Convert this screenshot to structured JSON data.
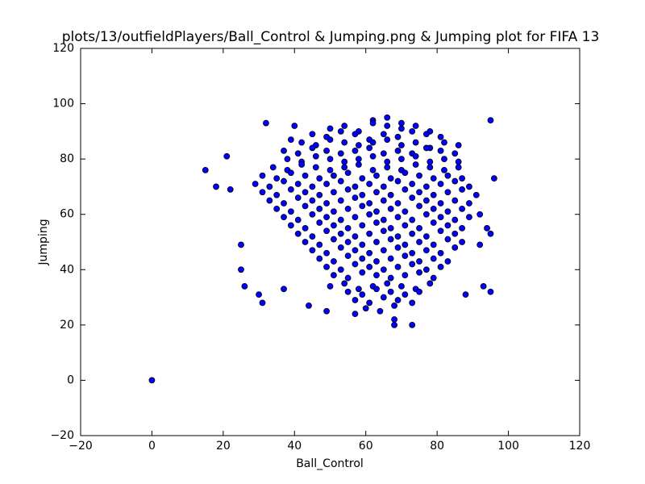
{
  "chart_data": {
    "type": "scatter",
    "title": "plots/13/outfieldPlayers/Ball_Control & Jumping.png & Jumping plot for FIFA 13",
    "xlabel": "Ball_Control",
    "ylabel": "Jumping",
    "color": "#0000ff",
    "xlim": [
      -20,
      120
    ],
    "ylim": [
      -20,
      120
    ],
    "xticks": [
      {
        "value": -20,
        "label": "−20"
      },
      0,
      20,
      40,
      60,
      80,
      100,
      120
    ],
    "yticks": [
      {
        "value": -20,
        "label": "−20"
      },
      0,
      20,
      40,
      60,
      80,
      100,
      120
    ],
    "x": [
      62,
      66,
      70,
      50,
      54,
      58,
      62,
      66,
      70,
      74,
      78,
      45,
      49,
      53,
      57,
      61,
      65,
      69,
      73,
      77,
      81,
      42,
      46,
      50,
      54,
      58,
      62,
      66,
      70,
      74,
      78,
      82,
      86,
      37,
      41,
      45,
      49,
      53,
      57,
      61,
      65,
      69,
      73,
      77,
      81,
      85,
      38,
      42,
      46,
      50,
      54,
      58,
      62,
      66,
      70,
      74,
      78,
      82,
      86,
      34,
      38,
      42,
      46,
      50,
      54,
      58,
      62,
      66,
      70,
      74,
      78,
      82,
      86,
      31,
      35,
      39,
      43,
      47,
      51,
      55,
      59,
      63,
      67,
      71,
      75,
      79,
      83,
      87,
      29,
      33,
      37,
      41,
      45,
      49,
      53,
      57,
      61,
      65,
      69,
      73,
      77,
      81,
      85,
      89,
      31,
      35,
      39,
      43,
      47,
      51,
      55,
      59,
      63,
      67,
      71,
      75,
      79,
      83,
      87,
      91,
      33,
      37,
      41,
      45,
      49,
      53,
      57,
      61,
      65,
      69,
      73,
      77,
      81,
      85,
      89,
      35,
      39,
      43,
      47,
      51,
      55,
      59,
      63,
      67,
      71,
      75,
      79,
      83,
      87,
      37,
      41,
      45,
      49,
      53,
      57,
      61,
      65,
      69,
      73,
      77,
      81,
      85,
      89,
      39,
      43,
      47,
      51,
      55,
      59,
      63,
      67,
      71,
      75,
      79,
      83,
      87,
      41,
      45,
      49,
      53,
      57,
      61,
      65,
      69,
      73,
      77,
      81,
      85,
      43,
      47,
      51,
      55,
      59,
      63,
      67,
      71,
      75,
      79,
      83,
      87,
      45,
      49,
      53,
      57,
      61,
      65,
      69,
      73,
      77,
      81,
      85,
      47,
      51,
      55,
      59,
      63,
      67,
      71,
      75,
      79,
      83,
      49,
      53,
      57,
      61,
      65,
      69,
      73,
      77,
      81,
      51,
      55,
      59,
      63,
      67,
      71,
      75,
      79,
      50,
      54,
      58,
      62,
      66,
      70,
      74,
      78,
      55,
      59,
      63,
      67,
      71,
      75,
      57,
      61,
      65,
      69,
      73,
      60,
      64,
      68,
      0,
      15,
      18,
      21,
      22,
      95,
      96,
      73,
      68,
      68,
      32,
      25,
      26,
      30,
      31,
      44,
      49,
      57,
      95,
      93,
      88,
      95,
      92,
      25,
      39,
      37,
      40,
      92,
      94
    ],
    "y": [
      94,
      95,
      93,
      91,
      92,
      90,
      93,
      92,
      91,
      92,
      90,
      89,
      88,
      90,
      89,
      87,
      89,
      88,
      90,
      89,
      88,
      86,
      85,
      87,
      86,
      85,
      86,
      87,
      85,
      86,
      84,
      86,
      85,
      83,
      82,
      84,
      83,
      82,
      83,
      84,
      82,
      83,
      82,
      84,
      83,
      82,
      80,
      79,
      81,
      80,
      79,
      80,
      81,
      79,
      80,
      81,
      79,
      80,
      79,
      77,
      76,
      78,
      77,
      76,
      77,
      78,
      76,
      77,
      76,
      78,
      77,
      76,
      77,
      74,
      73,
      75,
      74,
      73,
      74,
      75,
      73,
      74,
      73,
      75,
      74,
      73,
      74,
      73,
      71,
      70,
      72,
      71,
      70,
      71,
      72,
      70,
      71,
      70,
      72,
      71,
      70,
      71,
      72,
      70,
      68,
      67,
      69,
      68,
      67,
      68,
      69,
      67,
      68,
      67,
      69,
      68,
      67,
      68,
      69,
      67,
      65,
      64,
      66,
      65,
      64,
      65,
      66,
      64,
      65,
      64,
      66,
      65,
      64,
      65,
      64,
      62,
      61,
      63,
      62,
      61,
      62,
      63,
      61,
      62,
      61,
      63,
      62,
      61,
      62,
      59,
      58,
      60,
      59,
      58,
      59,
      60,
      58,
      59,
      58,
      60,
      59,
      58,
      59,
      56,
      55,
      57,
      56,
      55,
      56,
      57,
      55,
      56,
      55,
      57,
      56,
      55,
      53,
      52,
      54,
      53,
      52,
      53,
      54,
      52,
      53,
      52,
      54,
      53,
      50,
      49,
      51,
      50,
      49,
      50,
      51,
      49,
      50,
      49,
      51,
      50,
      47,
      46,
      48,
      47,
      46,
      47,
      48,
      46,
      47,
      46,
      48,
      44,
      43,
      45,
      44,
      43,
      44,
      45,
      43,
      44,
      43,
      41,
      40,
      42,
      41,
      40,
      41,
      42,
      40,
      41,
      38,
      37,
      39,
      38,
      37,
      38,
      39,
      37,
      34,
      35,
      33,
      34,
      35,
      34,
      33,
      35,
      32,
      31,
      33,
      32,
      31,
      32,
      29,
      28,
      30,
      29,
      28,
      26,
      25,
      27,
      0,
      76,
      70,
      81,
      69,
      94,
      73,
      20,
      20,
      22,
      93,
      40,
      34,
      31,
      28,
      27,
      25,
      24,
      32,
      34,
      31,
      53,
      60,
      49,
      87,
      33,
      92,
      49,
      55
    ]
  }
}
